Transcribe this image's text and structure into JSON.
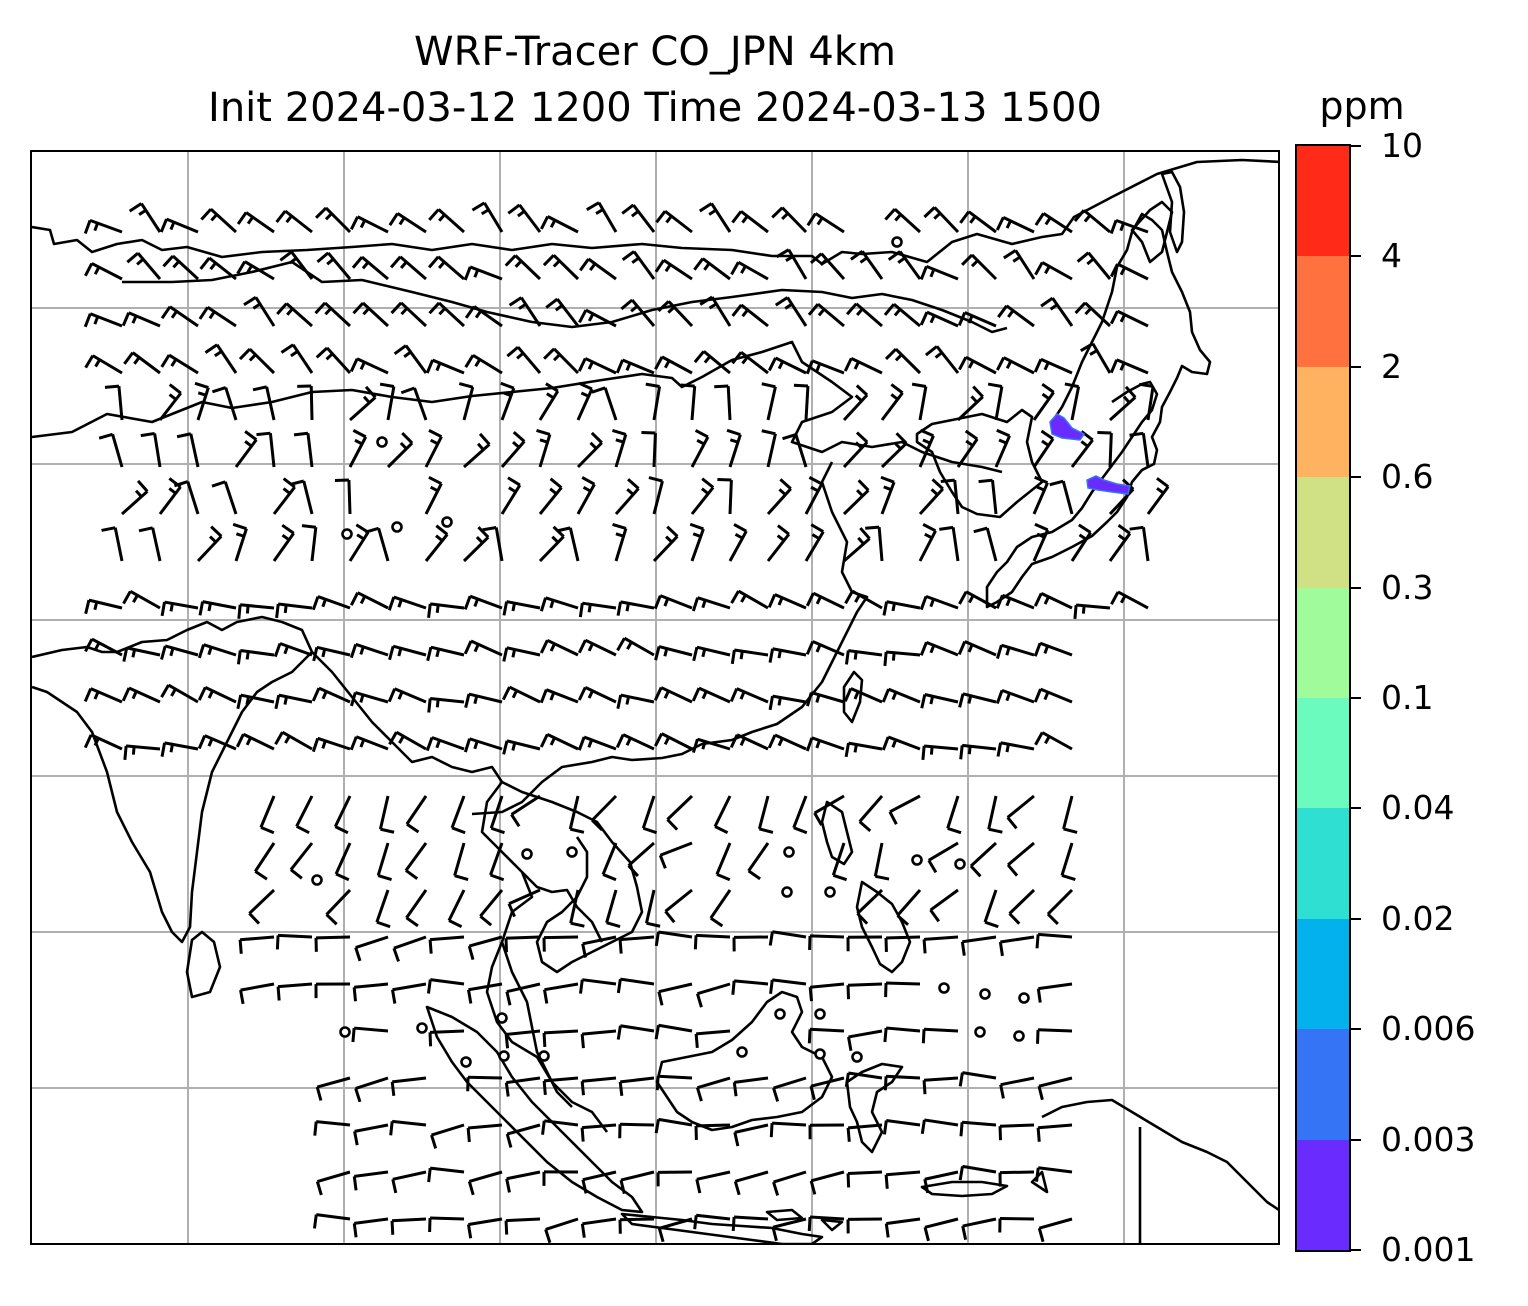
{
  "title": {
    "line1": "WRF-Tracer CO_JPN 4km",
    "line2": "Init 2024-03-12 1200 Time 2024-03-13 1500"
  },
  "colorbar": {
    "unit": "ppm",
    "ticks": [
      "0.001",
      "0.003",
      "0.006",
      "0.02",
      "0.04",
      "0.1",
      "0.3",
      "0.6",
      "2",
      "4",
      "10"
    ],
    "colors": [
      "#6a2bff",
      "#3575f5",
      "#03b2ec",
      "#2fe0d2",
      "#6bfbbe",
      "#a0fb9a",
      "#d0e185",
      "#ffb260",
      "#ff7240",
      "#ff2a17"
    ]
  },
  "map": {
    "gridlines": "on",
    "grid_color": "#b0b0b0",
    "coastline_color": "#000000",
    "wind_barbs": "on",
    "tracer_patches": [
      {
        "region": "northern Japan",
        "level": "0.001-0.006 ppm"
      },
      {
        "region": "central Japan",
        "level": "0.001-0.006 ppm"
      }
    ]
  }
}
